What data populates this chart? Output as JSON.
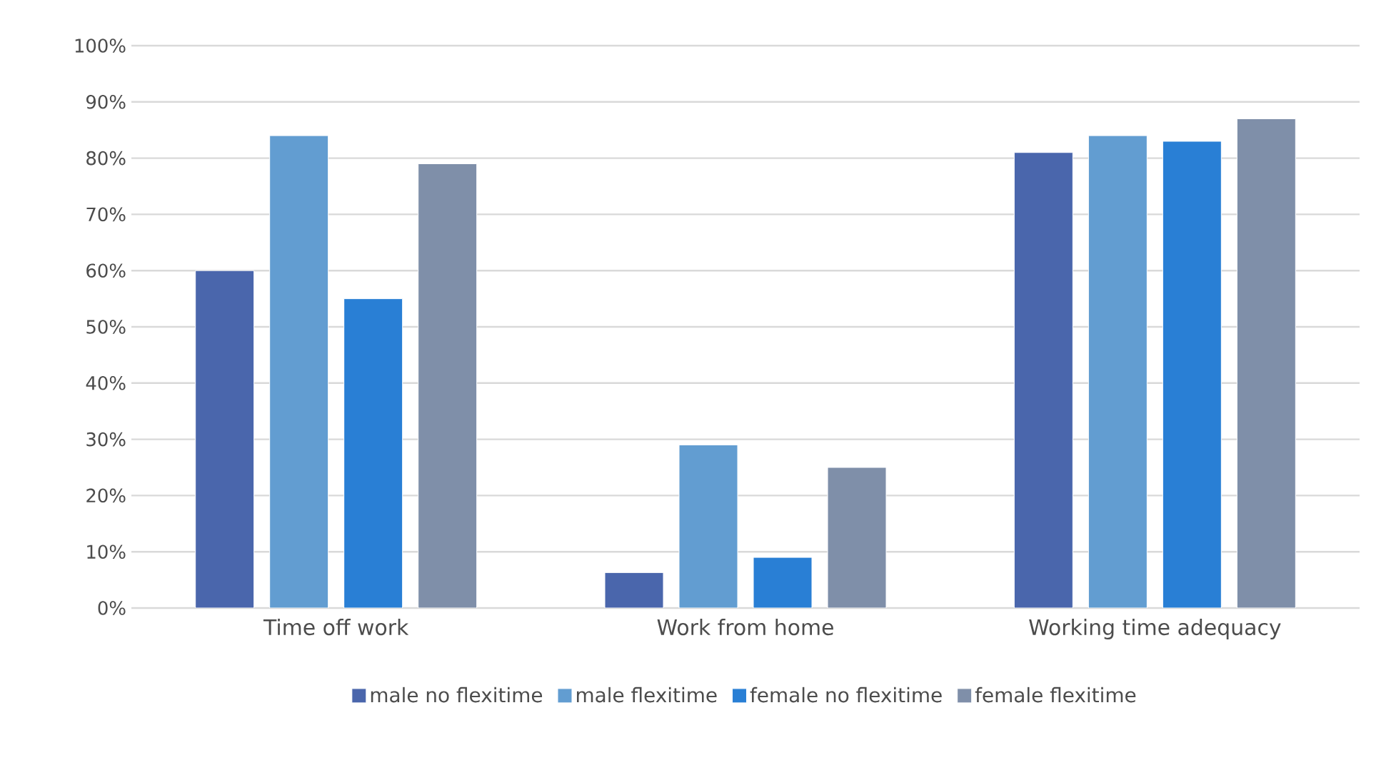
{
  "chart_data": {
    "type": "bar",
    "categories": [
      "Time off work",
      "Work from home",
      "Working time adequacy"
    ],
    "series": [
      {
        "name": "male no flexitime",
        "color": "#4a66ac",
        "values": [
          60,
          6.3,
          81
        ]
      },
      {
        "name": "male flexitime",
        "color": "#629dd1",
        "values": [
          84,
          29,
          84
        ]
      },
      {
        "name": "female no flexitime",
        "color": "#297fd5",
        "values": [
          55,
          9,
          83
        ]
      },
      {
        "name": "female flexitime",
        "color": "#7f8fa9",
        "values": [
          79,
          25,
          87
        ]
      }
    ],
    "ylim": [
      0,
      100
    ],
    "yticks": [
      {
        "value": 0,
        "label": "0%"
      },
      {
        "value": 10,
        "label": "10%"
      },
      {
        "value": 20,
        "label": "20%"
      },
      {
        "value": 30,
        "label": "30%"
      },
      {
        "value": 40,
        "label": "40%"
      },
      {
        "value": 50,
        "label": "50%"
      },
      {
        "value": 60,
        "label": "60%"
      },
      {
        "value": 70,
        "label": "70%"
      },
      {
        "value": 80,
        "label": "80%"
      },
      {
        "value": 90,
        "label": "90%"
      },
      {
        "value": 100,
        "label": "100%"
      }
    ],
    "grid": "y",
    "legend": "bottom"
  }
}
